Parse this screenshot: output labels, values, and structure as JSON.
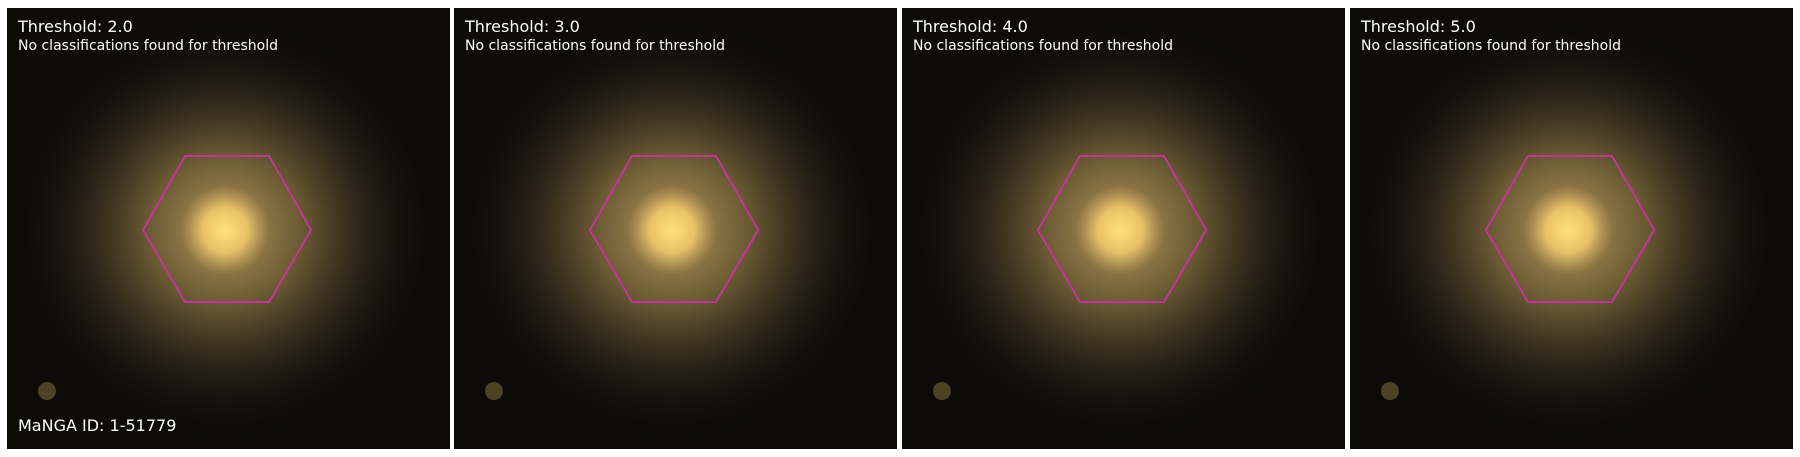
{
  "figure": {
    "object_id_label": "MaNGA ID: 1-51779",
    "panels": [
      {
        "threshold_label": "Threshold: 2.0",
        "status": "No classifications found for threshold"
      },
      {
        "threshold_label": "Threshold: 3.0",
        "status": "No classifications found for threshold"
      },
      {
        "threshold_label": "Threshold: 4.0",
        "status": "No classifications found for threshold"
      },
      {
        "threshold_label": "Threshold: 5.0",
        "status": "No classifications found for threshold"
      }
    ]
  },
  "colors": {
    "hexagon_outline": "#c2359a",
    "galaxy_core": "#ffd870",
    "galaxy_halo": "#a08a4e",
    "sky_background": "#0c0b08",
    "text": "#ffffff"
  }
}
